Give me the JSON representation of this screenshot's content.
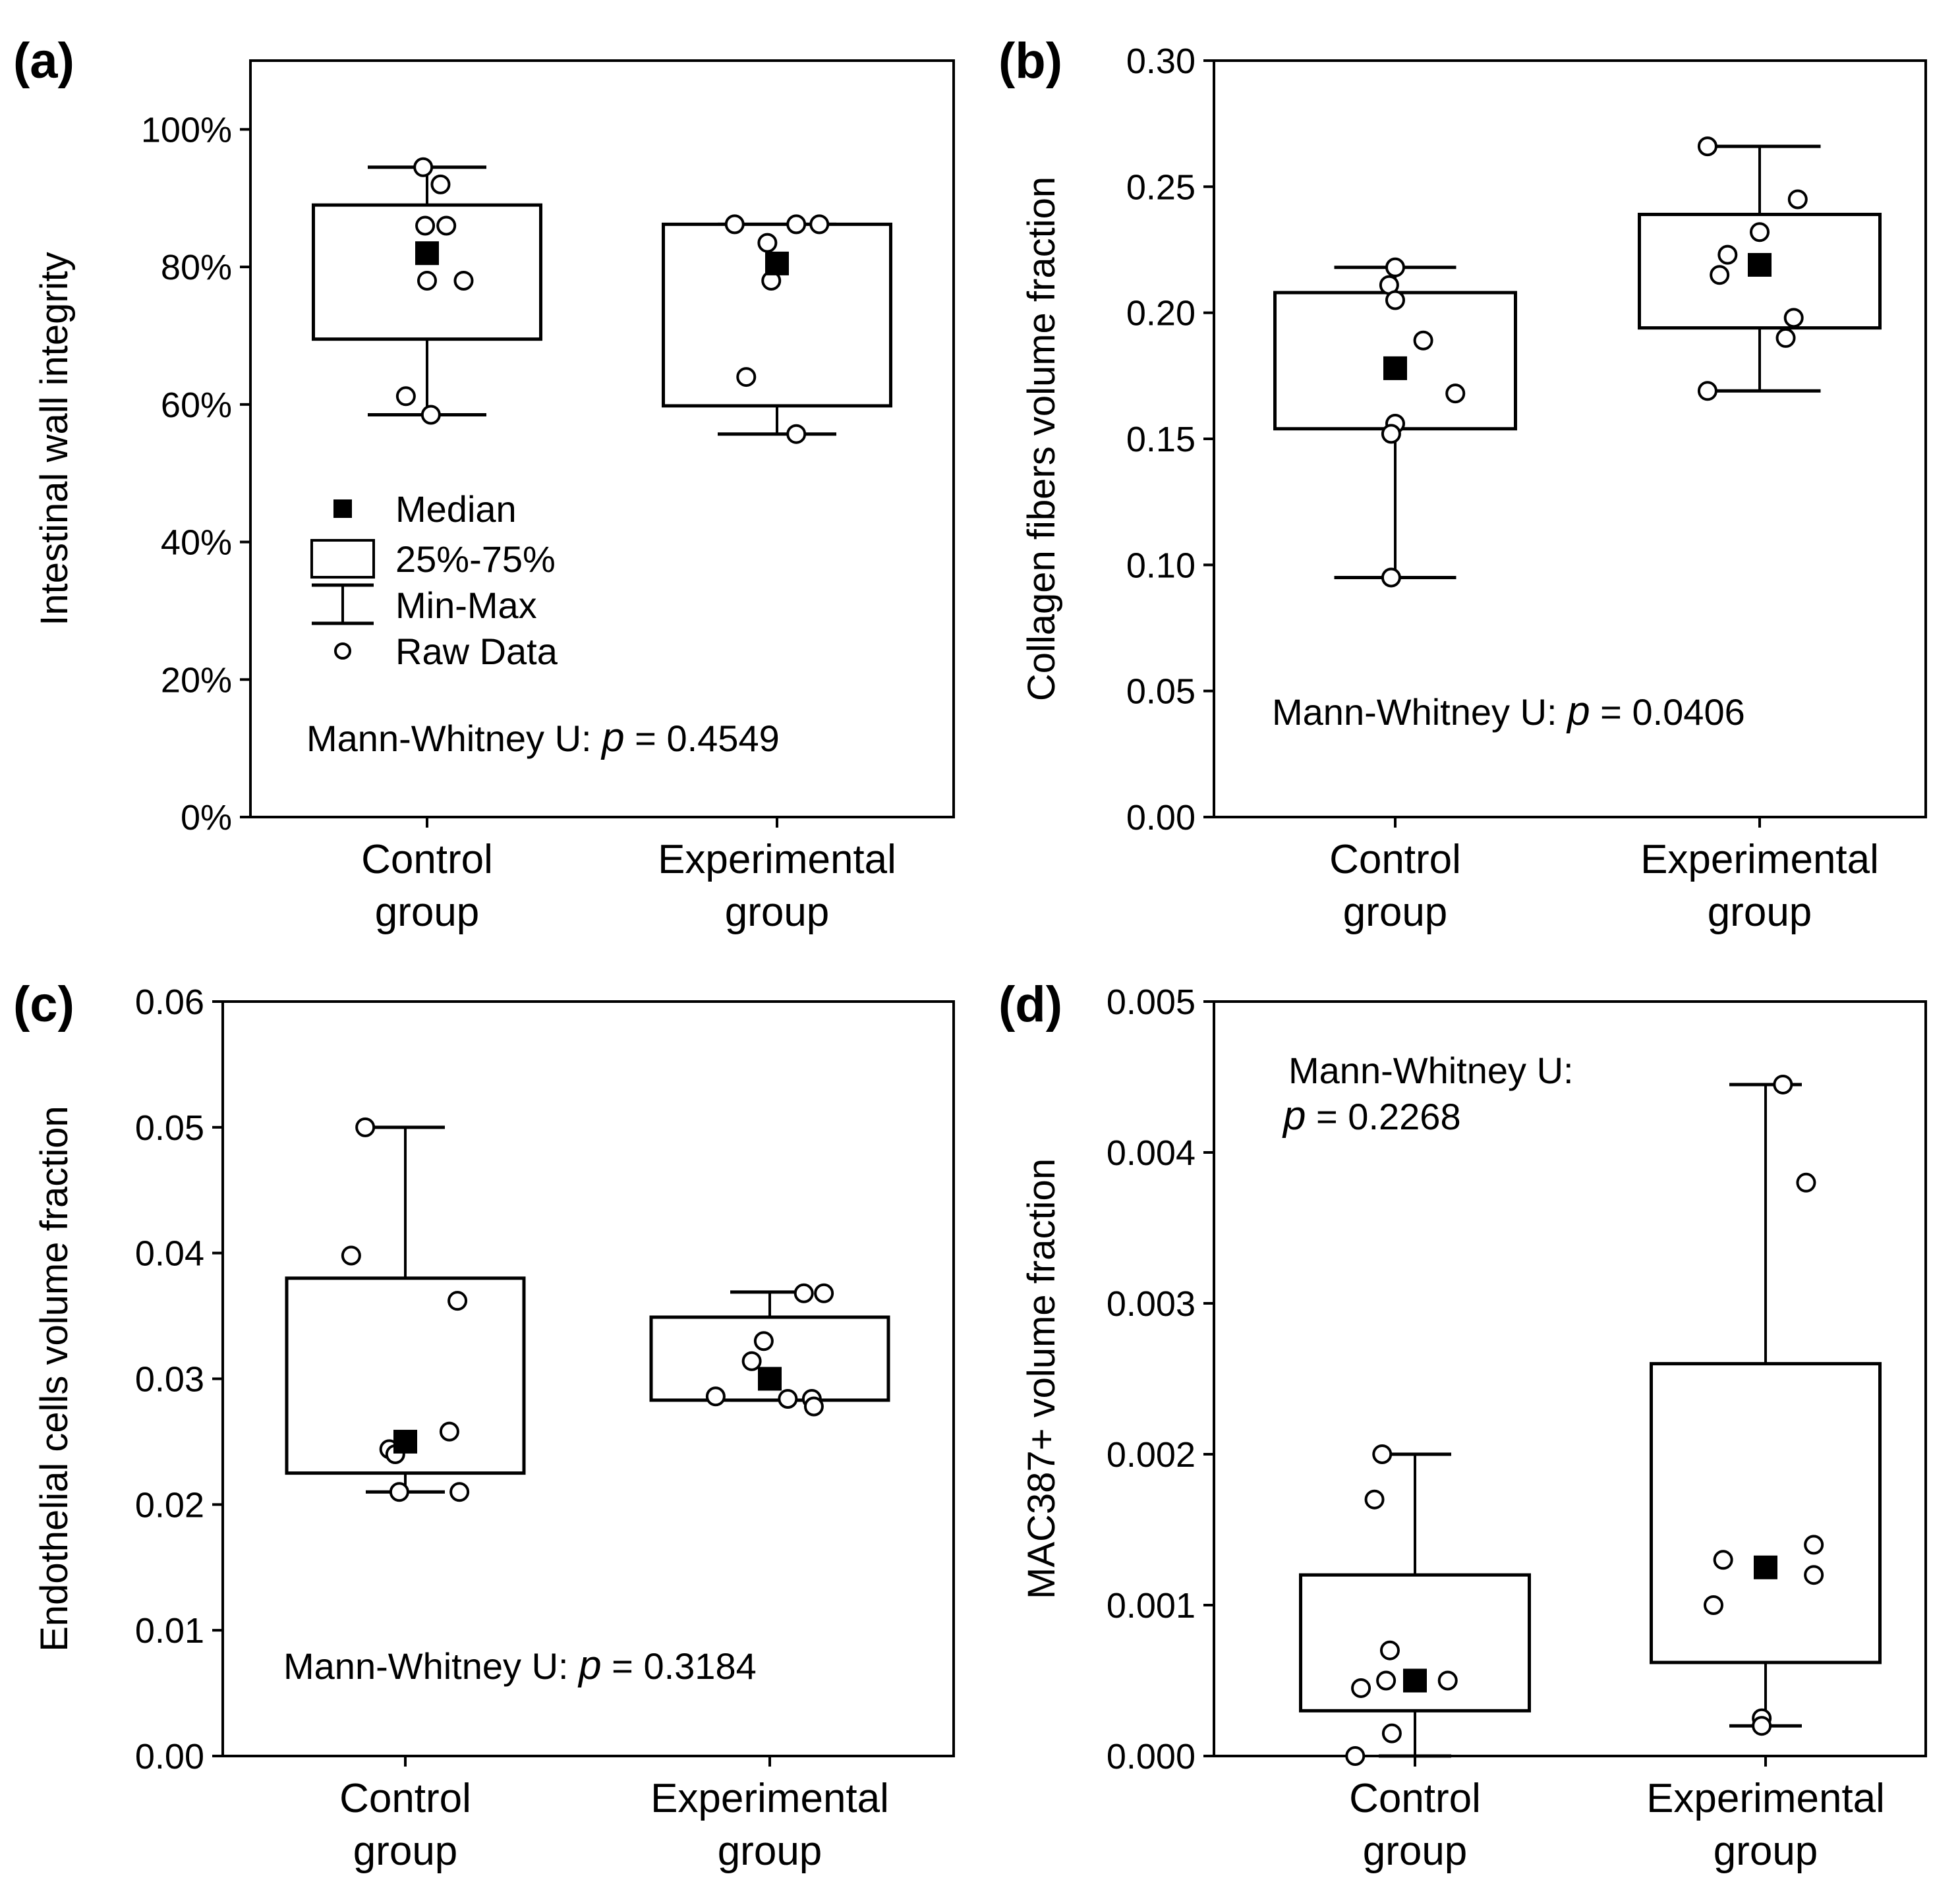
{
  "figure": {
    "panels": [
      "(a)",
      "(b)",
      "(c)",
      "(d)"
    ]
  },
  "chart_data": [
    {
      "panel_label": "(a)",
      "type": "box",
      "ylabel": "Intestinal wall integrity",
      "ylim": [
        0,
        1.1
      ],
      "y_ticks": [
        0,
        0.2,
        0.4,
        0.6,
        0.8,
        1.0
      ],
      "y_tick_labels": [
        "0%",
        "20%",
        "40%",
        "60%",
        "80%",
        "100%"
      ],
      "categories": [
        [
          "Control",
          "group"
        ],
        [
          "Experimental",
          "group"
        ]
      ],
      "boxes": [
        {
          "median": 0.82,
          "q1": 0.695,
          "q3": 0.89,
          "min": 0.585,
          "max": 0.945
        },
        {
          "median": 0.805,
          "q1": 0.598,
          "q3": 0.862,
          "min": 0.557,
          "max": 0.862
        }
      ],
      "raw": [
        [
          [
            -0.02,
            0.945
          ],
          [
            0.07,
            0.92
          ],
          [
            -0.01,
            0.86
          ],
          [
            0.1,
            0.86
          ],
          [
            0.0,
            0.78
          ],
          [
            0.19,
            0.78
          ],
          [
            -0.11,
            0.612
          ],
          [
            0.02,
            0.585
          ]
        ],
        [
          [
            -0.22,
            0.862
          ],
          [
            0.1,
            0.862
          ],
          [
            0.22,
            0.862
          ],
          [
            -0.05,
            0.835
          ],
          [
            -0.03,
            0.78
          ],
          [
            -0.16,
            0.64
          ],
          [
            0.1,
            0.557
          ]
        ]
      ],
      "stat_prefix": "Mann-Whitney U: ",
      "stat_p": "p",
      "stat_value": " = 0.4549",
      "grid": false,
      "legend": {
        "placement": "center-left",
        "entries": [
          "Median",
          "25%-75%",
          "Min-Max",
          "Raw Data"
        ]
      }
    },
    {
      "panel_label": "(b)",
      "type": "box",
      "ylabel": "Collagen fibers volume fraction",
      "ylim": [
        0,
        0.3
      ],
      "y_ticks": [
        0,
        0.05,
        0.1,
        0.15,
        0.2,
        0.25,
        0.3
      ],
      "y_tick_labels": [
        "0.00",
        "0.05",
        "0.10",
        "0.15",
        "0.20",
        "0.25",
        "0.30"
      ],
      "categories": [
        [
          "Control",
          "group"
        ],
        [
          "Experimental",
          "group"
        ]
      ],
      "boxes": [
        {
          "median": 0.178,
          "q1": 0.154,
          "q3": 0.208,
          "min": 0.095,
          "max": 0.218
        },
        {
          "median": 0.219,
          "q1": 0.194,
          "q3": 0.239,
          "min": 0.169,
          "max": 0.266
        }
      ],
      "raw": [
        [
          [
            0.0,
            0.218
          ],
          [
            -0.03,
            0.211
          ],
          [
            0.0,
            0.205
          ],
          [
            0.14,
            0.189
          ],
          [
            0.3,
            0.168
          ],
          [
            0.0,
            0.156
          ],
          [
            -0.02,
            0.152
          ],
          [
            -0.02,
            0.095
          ]
        ],
        [
          [
            -0.26,
            0.266
          ],
          [
            0.19,
            0.245
          ],
          [
            0.0,
            0.232
          ],
          [
            -0.16,
            0.223
          ],
          [
            -0.2,
            0.215
          ],
          [
            0.17,
            0.198
          ],
          [
            0.13,
            0.19
          ],
          [
            -0.26,
            0.169
          ]
        ]
      ],
      "stat_prefix": "Mann-Whitney U: ",
      "stat_p": "p",
      "stat_value": " = 0.0406",
      "grid": false
    },
    {
      "panel_label": "(c)",
      "type": "box",
      "ylabel": "Endothelial cells volume fraction",
      "ylim": [
        0,
        0.06
      ],
      "y_ticks": [
        0,
        0.01,
        0.02,
        0.03,
        0.04,
        0.05,
        0.06
      ],
      "y_tick_labels": [
        "0.00",
        "0.01",
        "0.02",
        "0.03",
        "0.04",
        "0.05",
        "0.06"
      ],
      "categories": [
        [
          "Control",
          "group"
        ],
        [
          "Experimental",
          "group"
        ]
      ],
      "boxes": [
        {
          "median": 0.025,
          "q1": 0.0225,
          "q3": 0.038,
          "min": 0.021,
          "max": 0.05
        },
        {
          "median": 0.03,
          "q1": 0.0283,
          "q3": 0.0349,
          "min": 0.0283,
          "max": 0.0369
        }
      ],
      "raw": [
        [
          [
            -0.2,
            0.05
          ],
          [
            -0.27,
            0.0398
          ],
          [
            0.26,
            0.0362
          ],
          [
            0.22,
            0.0258
          ],
          [
            -0.08,
            0.0244
          ],
          [
            -0.05,
            0.024
          ],
          [
            -0.03,
            0.021
          ],
          [
            0.27,
            0.021
          ]
        ],
        [
          [
            0.17,
            0.0368
          ],
          [
            0.27,
            0.0368
          ],
          [
            -0.03,
            0.033
          ],
          [
            -0.09,
            0.0314
          ],
          [
            -0.27,
            0.0286
          ],
          [
            0.09,
            0.0284
          ],
          [
            0.21,
            0.0284
          ],
          [
            0.22,
            0.0278
          ]
        ]
      ],
      "stat_prefix": "Mann-Whitney U: ",
      "stat_p": "p",
      "stat_value": " = 0.3184",
      "grid": false
    },
    {
      "panel_label": "(d)",
      "type": "box",
      "ylabel": "MAC387+ volume fraction",
      "ylim": [
        0,
        0.005
      ],
      "y_ticks": [
        0,
        0.001,
        0.002,
        0.003,
        0.004,
        0.005
      ],
      "y_tick_labels": [
        "0.000",
        "0.001",
        "0.002",
        "0.003",
        "0.004",
        "0.005"
      ],
      "categories": [
        [
          "Control",
          "group"
        ],
        [
          "Experimental",
          "group"
        ]
      ],
      "boxes": [
        {
          "median": 0.0005,
          "q1": 0.0003,
          "q3": 0.0012,
          "min": 0.0,
          "max": 0.002
        },
        {
          "median": 0.00125,
          "q1": 0.00062,
          "q3": 0.0026,
          "min": 0.0002,
          "max": 0.00445
        }
      ],
      "raw": [
        [
          [
            -0.17,
            0.002
          ],
          [
            -0.21,
            0.0017
          ],
          [
            -0.13,
            0.0007
          ],
          [
            -0.15,
            0.0005
          ],
          [
            0.17,
            0.0005
          ],
          [
            -0.28,
            0.00045
          ],
          [
            -0.12,
            0.00015
          ],
          [
            -0.31,
            0.0
          ]
        ],
        [
          [
            0.09,
            0.00445
          ],
          [
            0.21,
            0.0038
          ],
          [
            0.25,
            0.0014
          ],
          [
            -0.22,
            0.0013
          ],
          [
            0.25,
            0.0012
          ],
          [
            -0.27,
            0.001
          ],
          [
            -0.02,
            0.00025
          ],
          [
            -0.02,
            0.0002
          ]
        ]
      ],
      "stat_prefix": "Mann-Whitney U:",
      "stat_p": "p",
      "stat_value": " = 0.2268",
      "grid": false
    }
  ]
}
